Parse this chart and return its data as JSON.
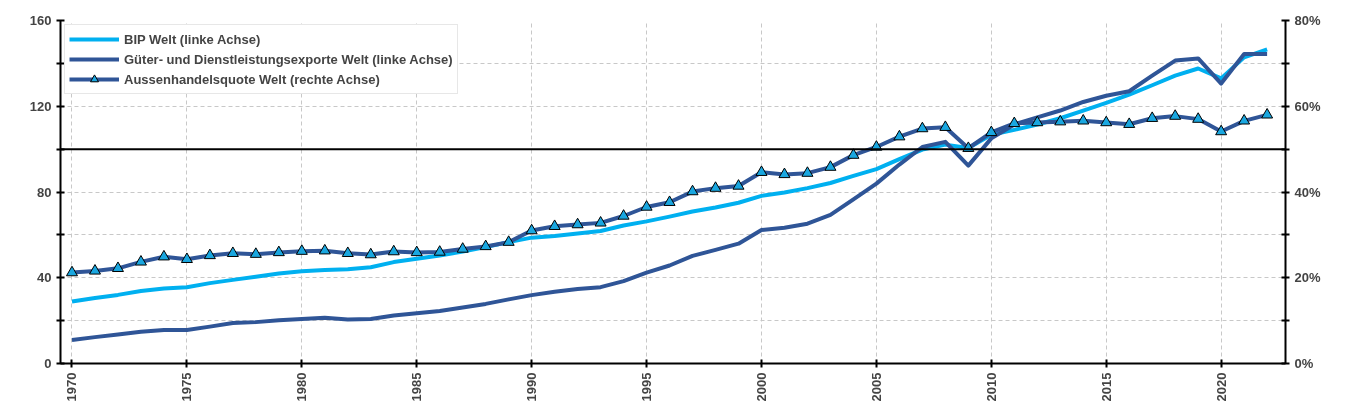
{
  "chart_data": {
    "type": "line",
    "x": [
      1970,
      1971,
      1972,
      1973,
      1974,
      1975,
      1976,
      1977,
      1978,
      1979,
      1980,
      1981,
      1982,
      1983,
      1984,
      1985,
      1986,
      1987,
      1988,
      1989,
      1990,
      1991,
      1992,
      1993,
      1994,
      1995,
      1996,
      1997,
      1998,
      1999,
      2000,
      2001,
      2002,
      2003,
      2004,
      2005,
      2006,
      2007,
      2008,
      2009,
      2010,
      2011,
      2012,
      2013,
      2014,
      2015,
      2016,
      2017,
      2018,
      2019,
      2020,
      2021,
      2022
    ],
    "series": [
      {
        "name": "BIP Welt (linke Achse)",
        "color": "#00b0f0",
        "marker": "none",
        "values": [
          28.9,
          30.6,
          32,
          33.8,
          35,
          35.6,
          37.5,
          39,
          40.5,
          42,
          43,
          43.6,
          44,
          44.9,
          47.3,
          48.9,
          50.4,
          52.2,
          54.3,
          56.6,
          58.7,
          59.5,
          60.6,
          61.8,
          64.4,
          66.3,
          68.5,
          70.9,
          72.8,
          75,
          78.2,
          79.8,
          81.8,
          84.2,
          87.5,
          90.7,
          95.3,
          99.8,
          102.1,
          100.5,
          106.7,
          109,
          111.5,
          114.4,
          118,
          121.6,
          125.4,
          129.8,
          134.3,
          137.6,
          133,
          142.8,
          146.5
        ]
      },
      {
        "name": "Güter- und Dienstleistungsexporte Welt (linke Achse)",
        "color": "#2f5597",
        "marker": "none",
        "values": [
          11,
          12.3,
          13.5,
          14.8,
          15.6,
          15.6,
          17.2,
          18.9,
          19.3,
          20.2,
          20.8,
          21.3,
          20.5,
          20.8,
          22.4,
          23.4,
          24.5,
          26.1,
          27.8,
          29.9,
          31.9,
          33.5,
          34.8,
          35.6,
          38.4,
          42.4,
          45.7,
          50.2,
          53,
          55.9,
          62.3,
          63.3,
          65.2,
          69.3,
          76.6,
          83.9,
          92.8,
          101,
          103.4,
          92.3,
          105,
          111.5,
          114.8,
          118,
          122,
          124.9,
          127,
          134.3,
          141.3,
          142.3,
          130.6,
          144.4,
          144.4
        ]
      },
      {
        "name": "Aussenhandelsquote Welt (rechte Achse)",
        "color": "#2f5597",
        "marker": "triangle",
        "axis": "y2",
        "values": [
          21.2,
          21.6,
          22.2,
          23.7,
          24.9,
          24.3,
          25.2,
          25.7,
          25.5,
          25.9,
          26.2,
          26.3,
          25.7,
          25.4,
          26.1,
          25.9,
          26,
          26.7,
          27.3,
          28.3,
          31,
          32,
          32.4,
          32.8,
          34.4,
          36.5,
          37.6,
          40.1,
          40.9,
          41.4,
          44.6,
          44.1,
          44.4,
          45.8,
          48.6,
          50.5,
          52.9,
          54.8,
          55.1,
          50.2,
          53.9,
          56,
          56.2,
          56.4,
          56.6,
          56.2,
          55.8,
          57.2,
          57.7,
          57,
          54.1,
          56.6,
          58
        ]
      }
    ],
    "xlim": [
      1969.5,
      2022.8
    ],
    "xticks": [
      1970,
      1975,
      1980,
      1985,
      1990,
      1995,
      2000,
      2005,
      2010,
      2015,
      2020
    ],
    "ylim": [
      0,
      160
    ],
    "yticks": [
      0,
      {
        "value": 20,
        "label": null
      },
      40,
      {
        "value": 60,
        "label": null
      },
      80,
      {
        "value": 100,
        "label": null
      },
      120,
      {
        "value": 140,
        "label": null
      },
      160
    ],
    "y2lim": [
      0,
      80
    ],
    "y2ticks": [
      {
        "value": 0,
        "label": "0%"
      },
      {
        "value": 10,
        "label": null
      },
      {
        "value": 20,
        "label": "20%"
      },
      {
        "value": 30,
        "label": null
      },
      {
        "value": 40,
        "label": "40%"
      },
      {
        "value": 50,
        "label": null
      },
      {
        "value": 60,
        "label": "60%"
      },
      {
        "value": 70,
        "label": null
      },
      {
        "value": 80,
        "label": "80%"
      }
    ],
    "ref_lines": [
      {
        "axis": "y",
        "value": 100,
        "color": "#000000"
      }
    ],
    "grid": true,
    "legend": "top left",
    "line_style": "solid"
  }
}
